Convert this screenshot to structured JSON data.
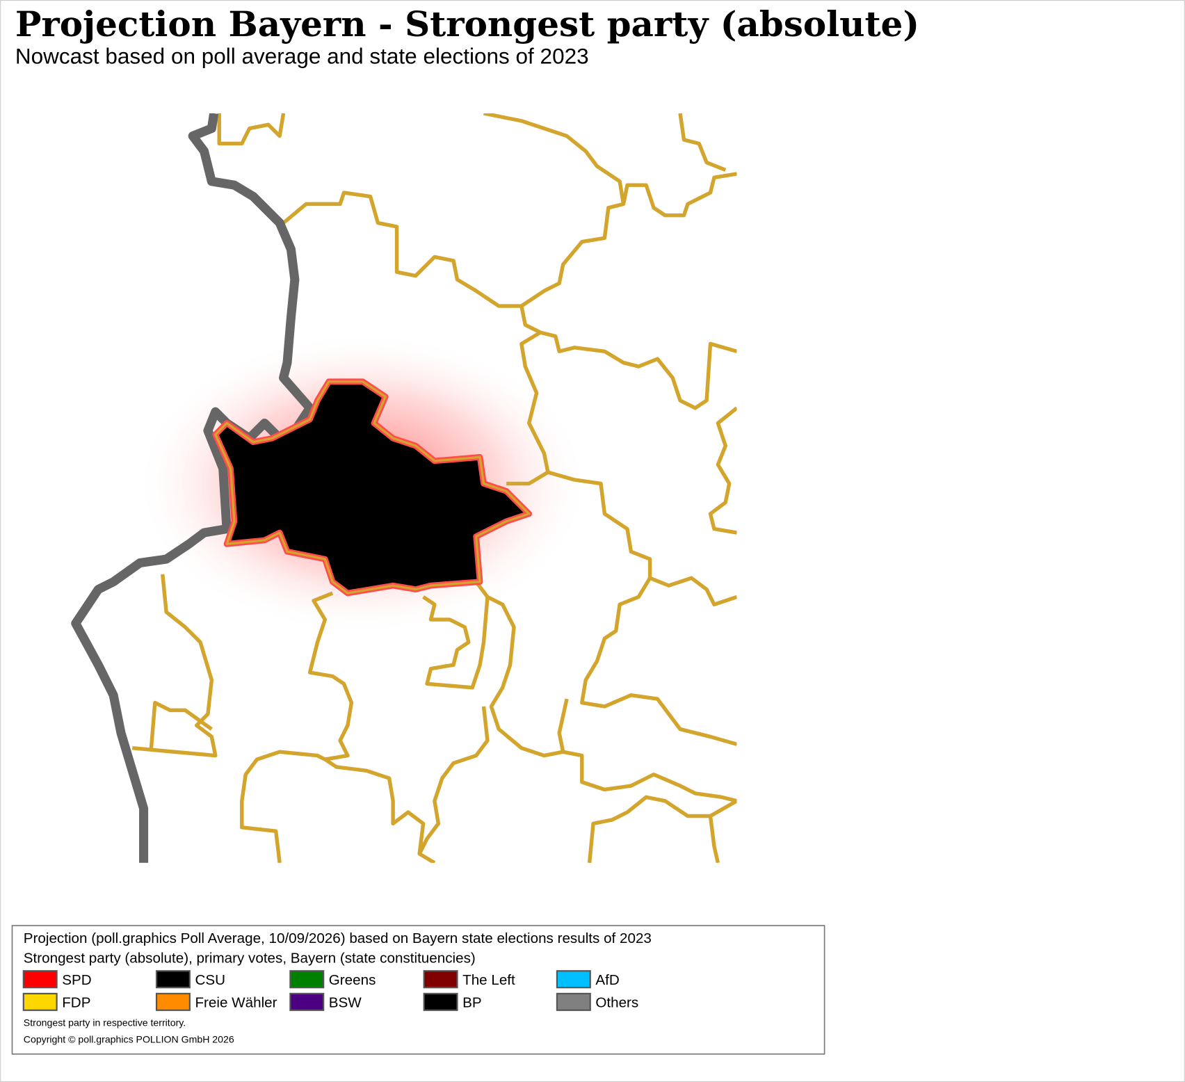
{
  "header": {
    "title": "Projection Bayern - Strongest party (absolute)",
    "subtitle": "Nowcast based on poll average and state elections of 2023"
  },
  "legend": {
    "lines": [
      "Projection (poll.graphics Poll Average, 10/09/2026) based on Bayern state elections results of 2023",
      "Strongest party (absolute), primary votes, Bayern (state constituencies)"
    ],
    "items": [
      {
        "name": "SPD",
        "color": "#ff0000"
      },
      {
        "name": "CSU",
        "color": "#000000"
      },
      {
        "name": "Greens",
        "color": "#008000"
      },
      {
        "name": "The Left",
        "color": "#800000"
      },
      {
        "name": "AfD",
        "color": "#00bfff"
      },
      {
        "name": "FDP",
        "color": "#ffd700"
      },
      {
        "name": "Freie Wähler",
        "color": "#ff8c00"
      },
      {
        "name": "BSW",
        "color": "#4b0082"
      },
      {
        "name": "BP",
        "color": "#000000"
      },
      {
        "name": "Others",
        "color": "#808080"
      }
    ],
    "notes": [
      "Strongest party in respective territory.",
      "Copyright © poll.graphics POLLION GmbH 2026"
    ]
  }
}
